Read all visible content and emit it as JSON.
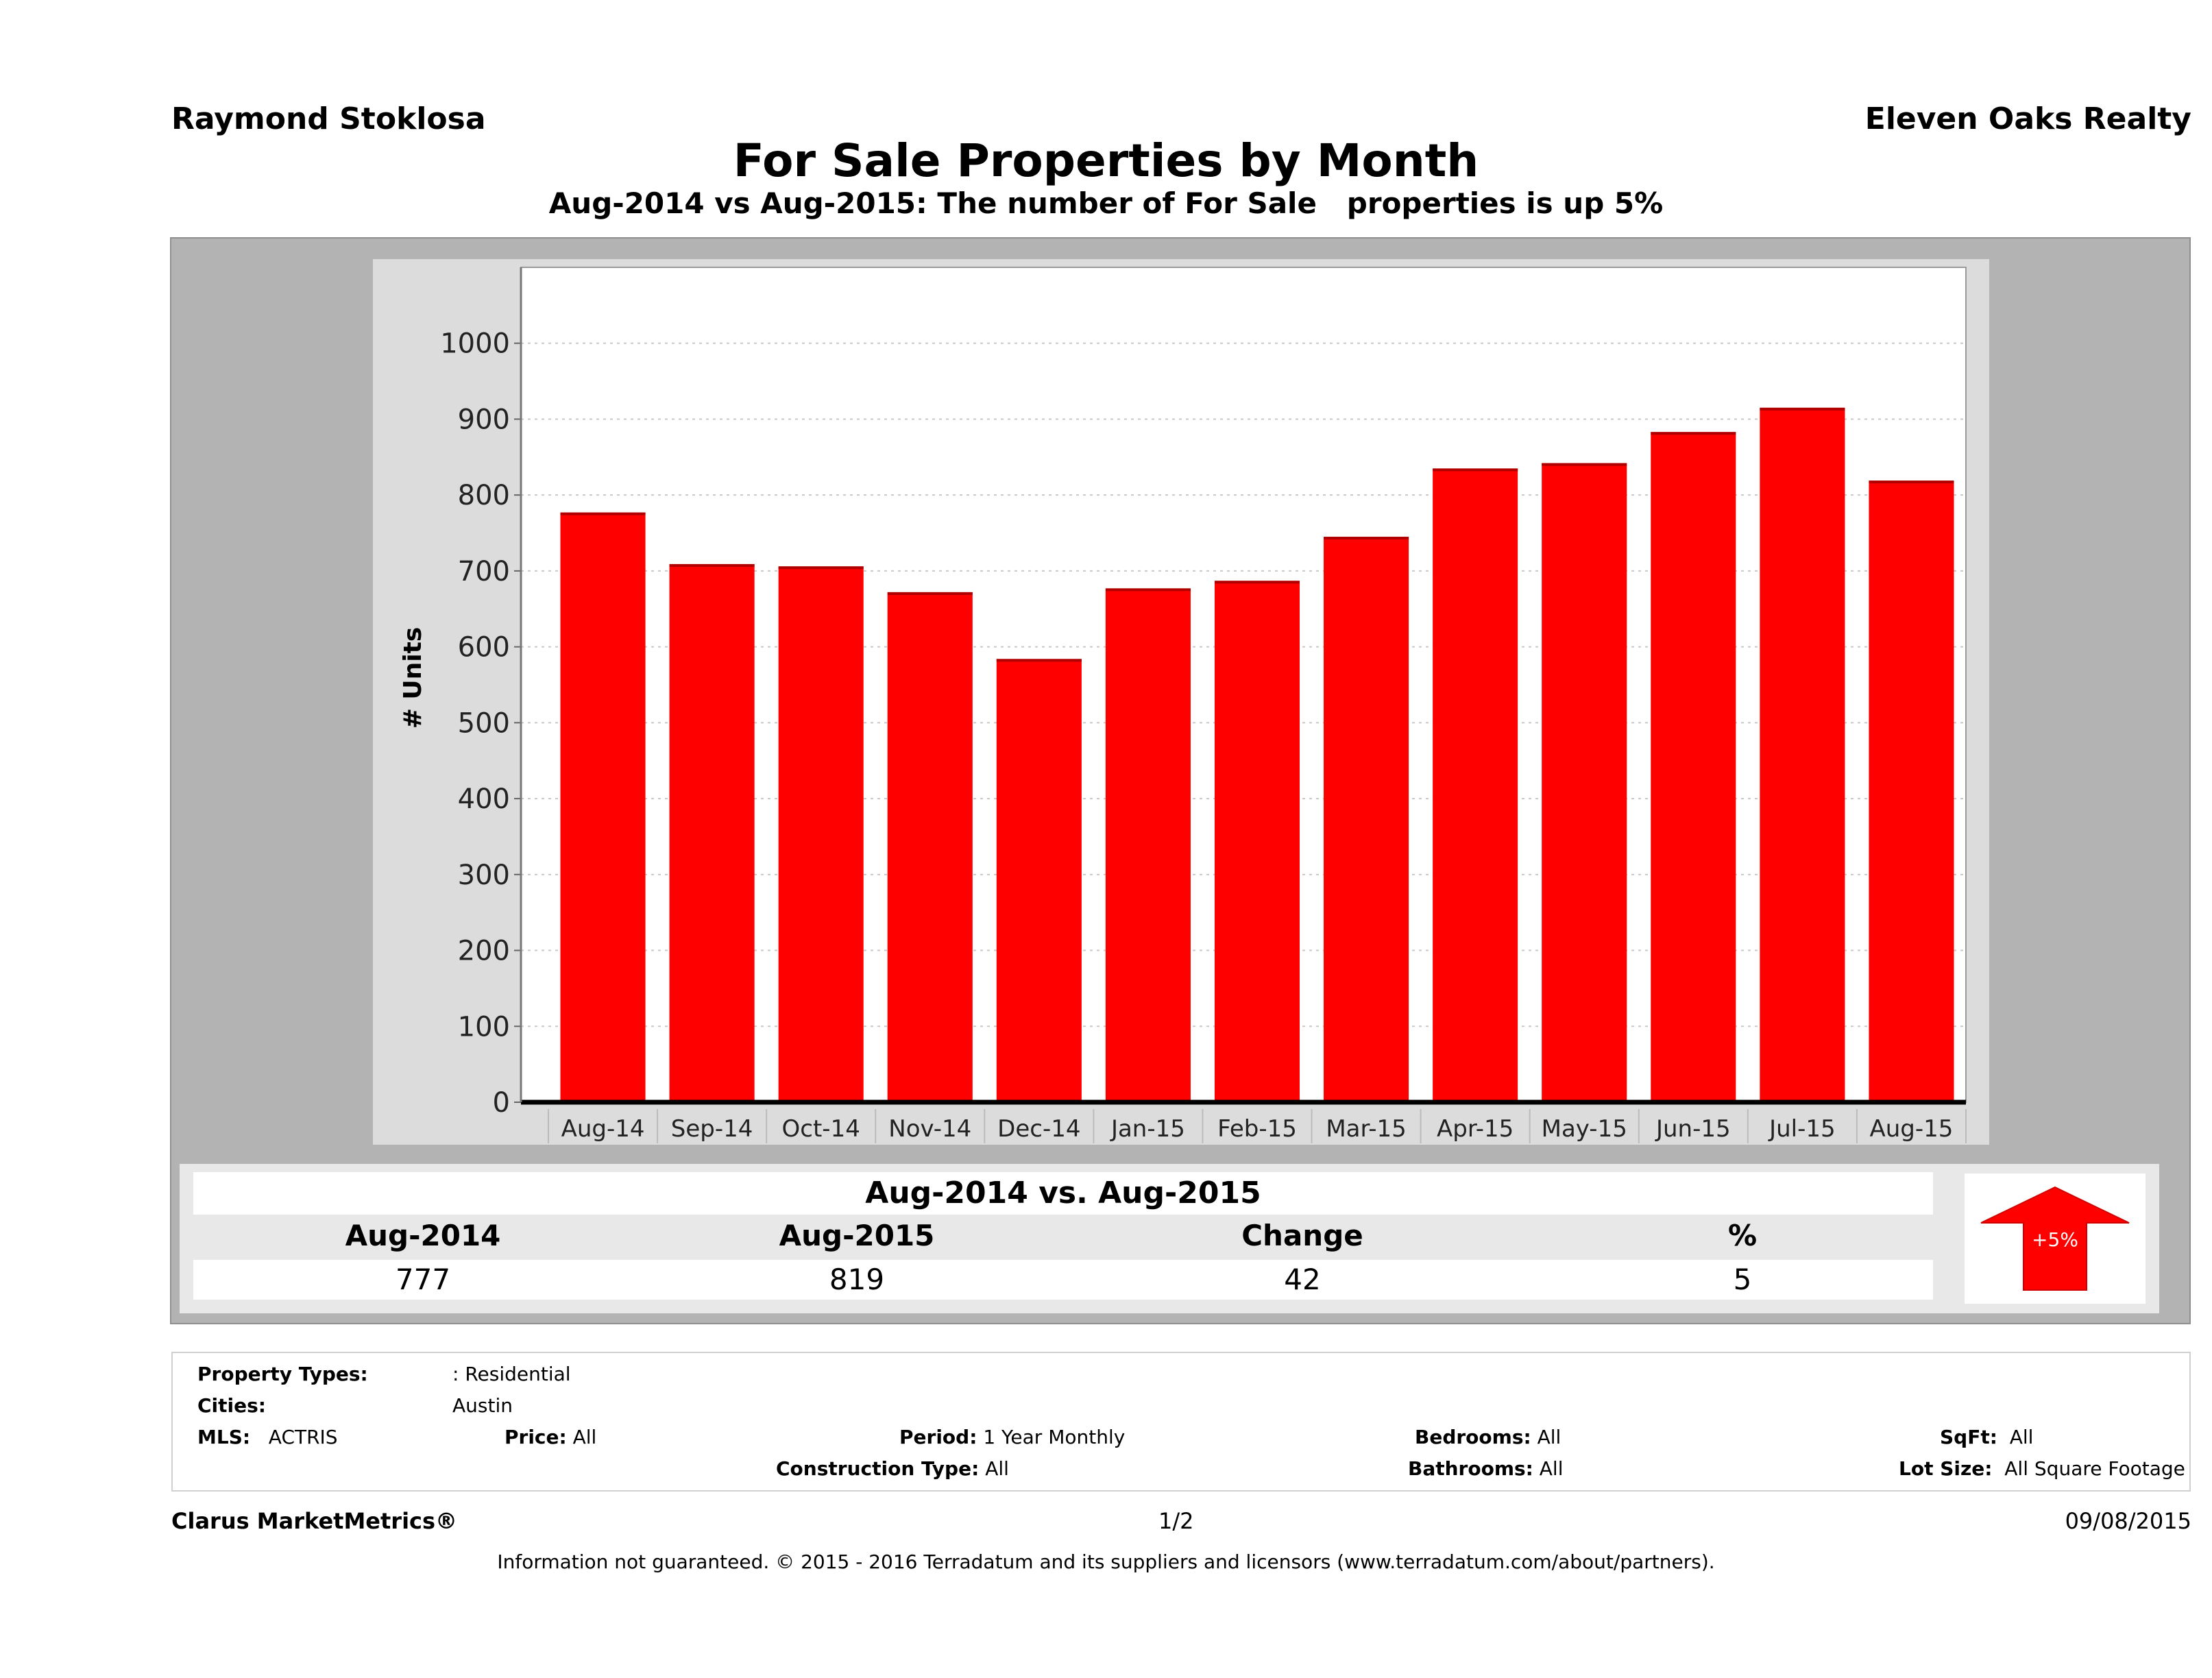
{
  "header": {
    "agent": "Raymond Stoklosa",
    "brokerage": "Eleven Oaks Realty",
    "title": "For Sale Properties by Month",
    "subtitle": "Aug-2014 vs Aug-2015: The number of For Sale   properties is up 5%"
  },
  "chart_data": {
    "type": "bar",
    "title": "For Sale Properties by Month",
    "xlabel": "",
    "ylabel": "# Units",
    "categories": [
      "Aug-14",
      "Sep-14",
      "Oct-14",
      "Nov-14",
      "Dec-14",
      "Jan-15",
      "Feb-15",
      "Mar-15",
      "Apr-15",
      "May-15",
      "Jun-15",
      "Jul-15",
      "Aug-15"
    ],
    "values": [
      777,
      709,
      706,
      672,
      584,
      677,
      687,
      745,
      835,
      842,
      883,
      915,
      819
    ],
    "ylim": [
      0,
      1100
    ],
    "yticks": [
      0,
      100,
      200,
      300,
      400,
      500,
      600,
      700,
      800,
      900,
      1000
    ],
    "grid": true,
    "legend": "none",
    "bar_color": "#ff0000"
  },
  "summary": {
    "title": "Aug-2014 vs. Aug-2015",
    "headers": [
      "Aug-2014",
      "Aug-2015",
      "Change",
      "%"
    ],
    "values": [
      "777",
      "819",
      "42",
      "5"
    ],
    "badge": "+5%",
    "badge_color": "#ff0000"
  },
  "criteria": {
    "property_types_label": "Property Types:",
    "property_types_value": ": Residential",
    "cities_label": "Cities:",
    "cities_value": "Austin",
    "mls_label": "MLS:",
    "mls_value": "ACTRIS",
    "price_label": "Price:",
    "price_value": "All",
    "period_label": "Period:",
    "period_value": "1 Year Monthly",
    "construction_label": "Construction Type:",
    "construction_value": "All",
    "bedrooms_label": "Bedrooms:",
    "bedrooms_value": "All",
    "bathrooms_label": "Bathrooms:",
    "bathrooms_value": "All",
    "sqft_label": "SqFt:",
    "sqft_value": "All",
    "lotsize_label": "Lot Size:",
    "lotsize_value": "All Square Footage"
  },
  "footer": {
    "product": "Clarus MarketMetrics®",
    "page": "1/2",
    "date": "09/08/2015",
    "disclaimer": "Information not guaranteed. © 2015 - 2016 Terradatum and its suppliers and licensors (www.terradatum.com/about/partners)."
  }
}
